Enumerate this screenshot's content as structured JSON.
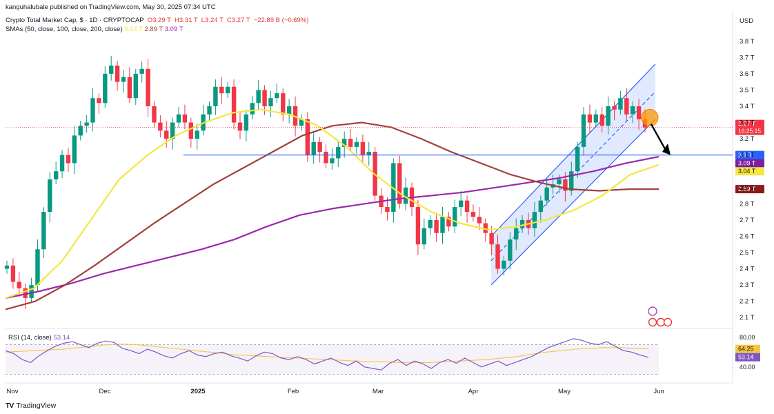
{
  "header": {
    "publisher": "kanguhalubale published on TradingView.com, May 30, 2025 07:34 UTC",
    "symbol": "Crypto Total Market Cap, $ · 1D · CRYPTOCAP",
    "ohlc": {
      "o_label": "O",
      "o": "3.29 T",
      "h_label": "H",
      "h": "3.31 T",
      "l_label": "L",
      "l": "3.24 T",
      "c_label": "C",
      "c": "3.27 T",
      "change": "−22.89 B (−0.69%)"
    },
    "sma_label": "SMAs (50, close, 100, close, 200, close)",
    "sma_values": [
      "3.04 T",
      "2.89 T",
      "3.09 T"
    ]
  },
  "rsi": {
    "label": "RSI (14, close)",
    "value": "53.14",
    "ma_value": "64.25",
    "upper": "80.00",
    "lower": "40.00"
  },
  "footer": {
    "brand": "TradingView"
  },
  "colors": {
    "up": "#089981",
    "down": "#f23645",
    "sma50": "#f5e642",
    "sma100": "#a0413a",
    "sma200": "#9c27b0",
    "channel": "#2962ff",
    "support": "#2962ff",
    "rsi": "#7e57c2",
    "rsi_ma": "#f5c542"
  },
  "chart_data": {
    "type": "candlestick",
    "currency": "USD",
    "y_unit": "T",
    "ylim": [
      2.05,
      3.85
    ],
    "yticks": [
      "3.8 T",
      "3.7 T",
      "3.6 T",
      "3.5 T",
      "3.4 T",
      "3.3 T",
      "3.2 T",
      "3.1 T",
      "2.9 T",
      "2.8 T",
      "2.7 T",
      "2.6 T",
      "2.5 T",
      "2.4 T",
      "2.3 T",
      "2.2 T",
      "2.1 T"
    ],
    "xticks": [
      "Nov",
      "Dec",
      "2025",
      "Feb",
      "Mar",
      "Apr",
      "May",
      "Jun"
    ],
    "close_series": [
      2.42,
      2.32,
      2.28,
      2.22,
      2.3,
      2.52,
      2.75,
      2.95,
      3.0,
      3.1,
      3.05,
      3.22,
      3.28,
      3.3,
      3.45,
      3.42,
      3.6,
      3.65,
      3.55,
      3.58,
      3.45,
      3.6,
      3.63,
      3.4,
      3.3,
      3.25,
      3.2,
      3.3,
      3.35,
      3.3,
      3.2,
      3.25,
      3.35,
      3.4,
      3.52,
      3.48,
      3.52,
      3.3,
      3.25,
      3.35,
      3.42,
      3.5,
      3.4,
      3.45,
      3.48,
      3.35,
      3.4,
      3.28,
      3.32,
      3.1,
      3.18,
      3.12,
      3.05,
      3.08,
      3.15,
      3.2,
      3.15,
      3.18,
      3.1,
      3.12,
      2.85,
      2.78,
      2.75,
      3.05,
      2.8,
      2.9,
      2.78,
      2.55,
      2.65,
      2.7,
      2.62,
      2.72,
      2.66,
      2.78,
      2.82,
      2.75,
      2.72,
      2.68,
      2.62,
      2.55,
      2.4,
      2.45,
      2.58,
      2.65,
      2.7,
      2.65,
      2.75,
      2.82,
      2.9,
      2.92,
      2.95,
      2.88,
      3.0,
      3.15,
      3.35,
      3.3,
      3.35,
      3.28,
      3.4,
      3.38,
      3.45,
      3.35,
      3.4,
      3.32,
      3.27
    ],
    "sma50": [
      2.22,
      2.28,
      2.45,
      2.7,
      2.95,
      3.1,
      3.22,
      3.3,
      3.36,
      3.38,
      3.35,
      3.28,
      3.15,
      2.98,
      2.85,
      2.75,
      2.68,
      2.64,
      2.66,
      2.7,
      2.76,
      2.85,
      2.98,
      3.04
    ],
    "sma100": [
      2.15,
      2.2,
      2.3,
      2.42,
      2.55,
      2.68,
      2.8,
      2.92,
      3.02,
      3.12,
      3.22,
      3.28,
      3.3,
      3.27,
      3.2,
      3.12,
      3.05,
      2.98,
      2.93,
      2.89,
      2.88,
      2.89,
      2.89
    ],
    "sma200": [
      2.22,
      2.26,
      2.31,
      2.37,
      2.42,
      2.47,
      2.52,
      2.58,
      2.66,
      2.73,
      2.77,
      2.8,
      2.83,
      2.85,
      2.87,
      2.9,
      2.93,
      2.96,
      3.0,
      3.05,
      3.09
    ],
    "annotations": {
      "support_level": 3.1,
      "last_price_label": "3.27 T",
      "countdown": "16:25:15",
      "support_label": "3.1 T",
      "sma200_label": "3.09 T",
      "sma50_label": "3.04 T",
      "sma100_label": "2.89 T",
      "channel": {
        "start_lower": 2.3,
        "start_upper": 2.6,
        "end_lower": 3.32,
        "end_upper": 3.66
      }
    },
    "rsi_series": [
      62,
      58,
      50,
      46,
      55,
      62,
      68,
      72,
      74,
      70,
      66,
      72,
      75,
      73,
      65,
      62,
      58,
      64,
      60,
      55,
      52,
      58,
      62,
      56,
      54,
      58,
      60,
      55,
      52,
      48,
      55,
      60,
      58,
      52,
      50,
      54,
      50,
      44,
      48,
      52,
      46,
      42,
      48,
      40,
      38,
      36,
      45,
      50,
      42,
      48,
      44,
      38,
      46,
      50,
      45,
      52,
      46,
      40,
      44,
      48,
      42,
      46,
      50,
      54,
      60,
      66,
      70,
      74,
      78,
      76,
      72,
      70,
      74,
      68,
      62,
      60,
      56,
      53
    ],
    "rsi_ma_series": [
      60,
      61,
      62,
      63,
      64,
      66,
      68,
      70,
      71,
      70,
      68,
      66,
      64,
      62,
      60,
      58,
      56,
      55,
      54,
      53,
      52,
      51,
      50,
      49,
      48,
      47,
      47,
      46,
      46,
      46,
      47,
      48,
      49,
      50,
      52,
      54,
      57,
      60,
      62,
      64,
      65,
      66,
      66,
      65,
      64.25
    ]
  }
}
